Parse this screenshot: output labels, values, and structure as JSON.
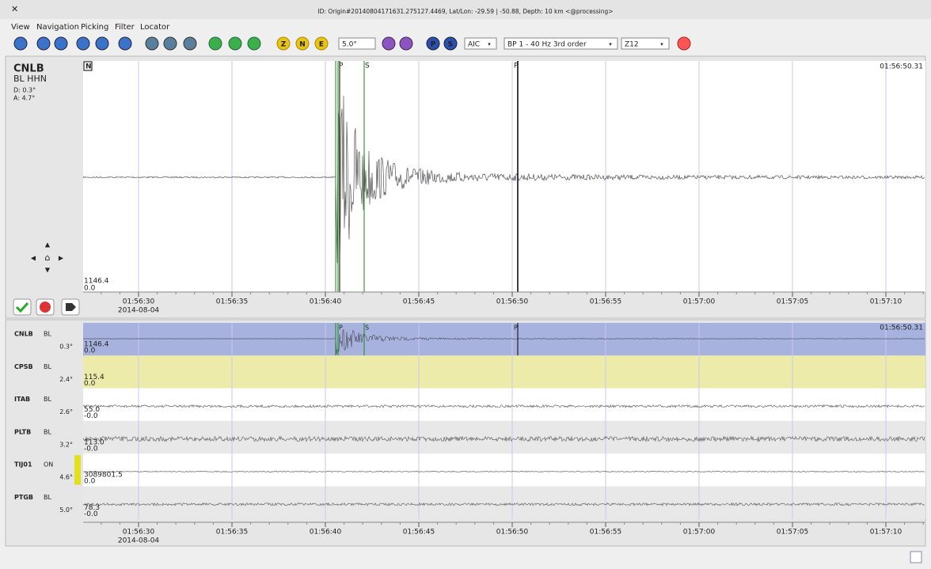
{
  "window": {
    "title": "ID: Origin#20140804171631.275127.4469, Lat/Lon: -29.59 | -50.88, Depth: 10 km <@processing>"
  },
  "menu": [
    "View",
    "Navigation",
    "Picking",
    "Filter",
    "Locator"
  ],
  "toolbar": {
    "component_buttons": [
      "Z",
      "N",
      "E"
    ],
    "spin": "5.0°",
    "phase_buttons": [
      "P",
      "S"
    ],
    "picker": "AIC",
    "filter": "BP 1 - 40 Hz 3rd order",
    "rotation": "Z12"
  },
  "main_trace": {
    "station": "CNLB",
    "network_channel": "BL  HHN",
    "distance": "D: 0.3°",
    "azimuth": "A: 4.7°",
    "component": "N",
    "end_time": "01:56:50.31",
    "amp_max": "1146.4",
    "amp_min": "0.0",
    "picks": [
      "P",
      "S",
      "P"
    ]
  },
  "time_axis": {
    "labels": [
      "01:56:30",
      "01:56:35",
      "01:56:40",
      "01:56:45",
      "01:56:50",
      "01:56:55",
      "01:57:00",
      "01:57:05",
      "01:57:10"
    ],
    "date": "2014-08-04"
  },
  "traces": [
    {
      "station": "CNLB",
      "network": "BL",
      "distance": "0.3°",
      "amp_max": "1146.4",
      "amp_min": "0.0",
      "end_time": "01:56:50.31",
      "picks": [
        "P",
        "S",
        "P"
      ]
    },
    {
      "station": "CPSB",
      "network": "BL",
      "distance": "2.4°",
      "amp_max": "115.4",
      "amp_min": "0.0"
    },
    {
      "station": "ITAB",
      "network": "BL",
      "distance": "2.6°",
      "amp_max": "55.0",
      "amp_min": "-0.0"
    },
    {
      "station": "PLTB",
      "network": "BL",
      "distance": "3.2°",
      "amp_max": "113.0",
      "amp_min": "-0.0"
    },
    {
      "station": "TIJ01",
      "network": "ON",
      "distance": "4.6°",
      "amp_max": "3089801.5",
      "amp_min": "0.0"
    },
    {
      "station": "PTGB",
      "network": "BL",
      "distance": "5.0°",
      "amp_max": "78.3",
      "amp_min": "-0.0"
    }
  ]
}
